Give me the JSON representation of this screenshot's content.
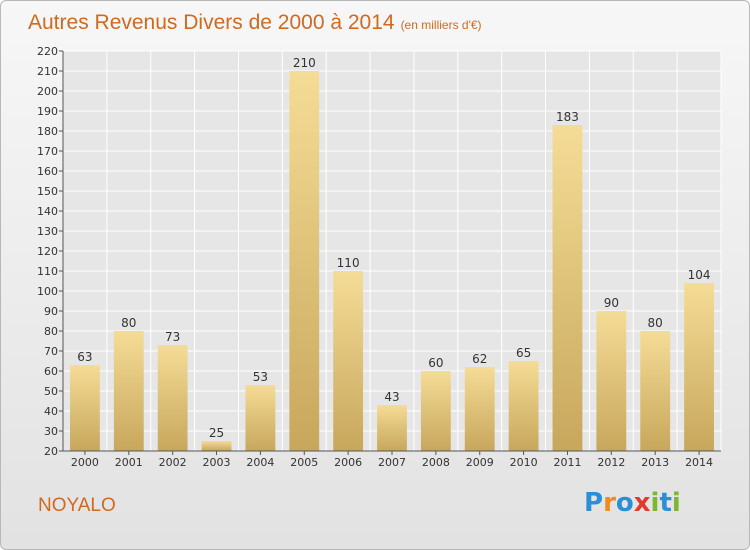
{
  "title": "Autres Revenus Divers de 2000 à 2014",
  "subtitle": "(en milliers d'€)",
  "commune": "NOYALO",
  "logo": {
    "text": "Proxiti",
    "letters": [
      "P",
      "r",
      "o",
      "x",
      "i",
      "t",
      "i"
    ],
    "colors": [
      "#2a8fd6",
      "#f08a1c",
      "#2a8fd6",
      "#e23a2e",
      "#7cb82f",
      "#2a8fd6",
      "#7cb82f"
    ]
  },
  "colors": {
    "bar_top": "#f5dc96",
    "bar_bottom": "#c7a75c",
    "title": "#d2691e",
    "grid": "#ffffff"
  },
  "chart_data": {
    "type": "bar",
    "title": "Autres Revenus Divers de 2000 à 2014",
    "subtitle": "(en milliers d'€)",
    "categories": [
      "2000",
      "2001",
      "2002",
      "2003",
      "2004",
      "2005",
      "2006",
      "2007",
      "2008",
      "2009",
      "2010",
      "2011",
      "2012",
      "2013",
      "2014"
    ],
    "values": [
      63,
      80,
      73,
      25,
      53,
      210,
      110,
      43,
      60,
      62,
      65,
      183,
      90,
      80,
      104
    ],
    "ylim": [
      20,
      220
    ],
    "yticks": [
      20,
      30,
      40,
      50,
      60,
      70,
      80,
      90,
      100,
      110,
      120,
      130,
      140,
      150,
      160,
      170,
      180,
      190,
      200,
      210,
      220
    ],
    "xlabel": "",
    "ylabel": "",
    "grid": true,
    "data_labels": true
  }
}
